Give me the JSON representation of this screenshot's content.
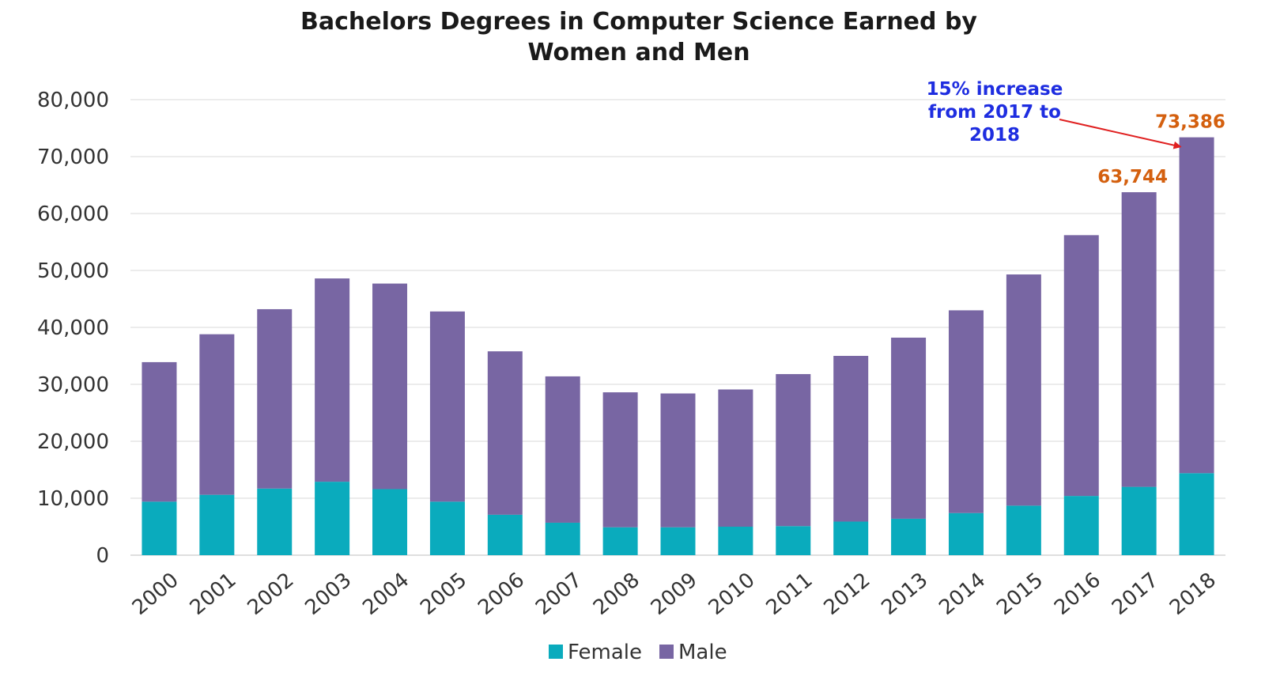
{
  "chart_data": {
    "type": "bar",
    "stacked": true,
    "title_lines": [
      "Bachelors Degrees in Computer Science Earned by",
      "Women and Men"
    ],
    "xlabel": "",
    "ylabel": "",
    "categories": [
      "2000",
      "2001",
      "2002",
      "2003",
      "2004",
      "2005",
      "2006",
      "2007",
      "2008",
      "2009",
      "2010",
      "2011",
      "2012",
      "2013",
      "2014",
      "2015",
      "2016",
      "2017",
      "2018"
    ],
    "series": [
      {
        "name": "Female",
        "color": "#0aabbd",
        "values": [
          9400,
          10600,
          11700,
          12900,
          11600,
          9400,
          7100,
          5700,
          4900,
          4900,
          5000,
          5100,
          5900,
          6400,
          7400,
          8700,
          10400,
          12000,
          14400
        ]
      },
      {
        "name": "Male",
        "color": "#7866a3",
        "values": [
          24500,
          28200,
          31500,
          35700,
          36100,
          33400,
          28700,
          25700,
          23700,
          23500,
          24100,
          26700,
          29100,
          31800,
          35600,
          40600,
          45800,
          51744,
          58986
        ]
      }
    ],
    "ylim": [
      0,
      80000
    ],
    "yticks": [
      0,
      10000,
      20000,
      30000,
      40000,
      50000,
      60000,
      70000,
      80000
    ],
    "ytick_labels": [
      "0",
      "10,000",
      "20,000",
      "30,000",
      "40,000",
      "50,000",
      "60,000",
      "70,000",
      "80,000"
    ],
    "grid": true,
    "legend_position": "bottom-center",
    "annotations": {
      "increase_lines": [
        "15% increase",
        "from 2017 to",
        "2018"
      ],
      "labels": [
        {
          "category": "2017",
          "text": "63,744"
        },
        {
          "category": "2018",
          "text": "73,386"
        }
      ]
    }
  }
}
